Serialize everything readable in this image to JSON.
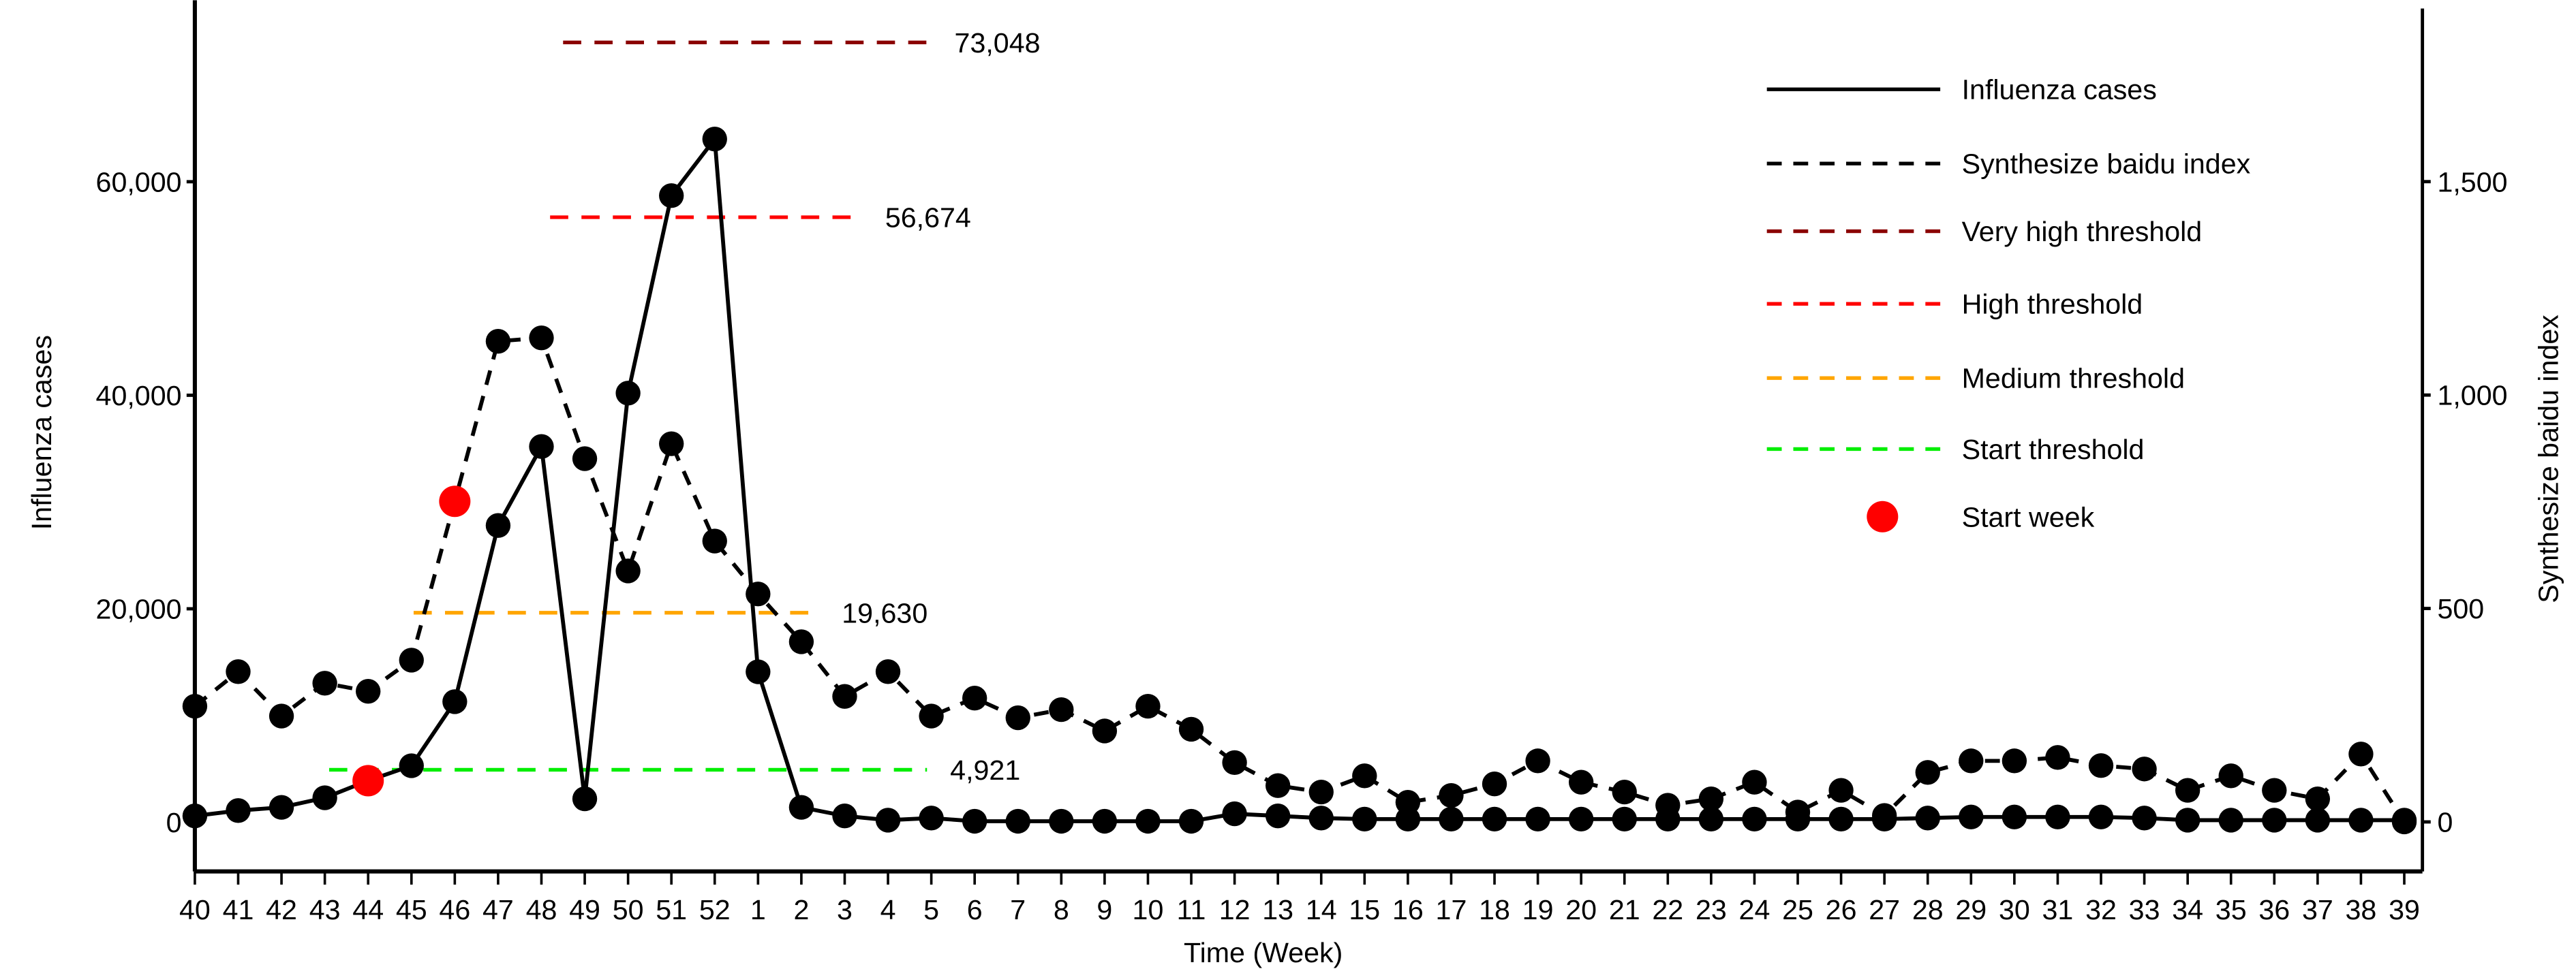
{
  "chart_data": {
    "type": "line",
    "xlabel": "Time (Week)",
    "ylabel": "Influenza cases",
    "y2label": "Synthesize baidu index",
    "categories": [
      "40",
      "41",
      "42",
      "43",
      "44",
      "45",
      "46",
      "47",
      "48",
      "49",
      "50",
      "51",
      "52",
      "1",
      "2",
      "3",
      "4",
      "5",
      "6",
      "7",
      "8",
      "9",
      "10",
      "11",
      "12",
      "13",
      "14",
      "15",
      "16",
      "17",
      "18",
      "19",
      "20",
      "21",
      "22",
      "23",
      "24",
      "25",
      "26",
      "27",
      "28",
      "29",
      "30",
      "31",
      "32",
      "33",
      "34",
      "35",
      "36",
      "37",
      "38",
      "39"
    ],
    "ylim": [
      -4600,
      77000
    ],
    "y2lim": [
      -116,
      1925
    ],
    "yticks": [
      0,
      20000,
      40000,
      60000
    ],
    "ytick_labels": [
      "0",
      "20,000",
      "40,000",
      "60,000"
    ],
    "y2ticks": [
      0,
      500,
      1000,
      1500
    ],
    "y2tick_labels": [
      "0",
      "500",
      "1,000",
      "1,500"
    ],
    "series": [
      {
        "name": "Influenza cases",
        "axis": "left",
        "style": "solid",
        "color": "#000000",
        "values": [
          600,
          1100,
          1400,
          2300,
          3900,
          5300,
          11300,
          27800,
          35200,
          2200,
          40200,
          58700,
          64000,
          14100,
          1400,
          600,
          200,
          400,
          100,
          100,
          100,
          100,
          100,
          100,
          800,
          600,
          400,
          300,
          300,
          300,
          300,
          300,
          300,
          300,
          300,
          300,
          300,
          300,
          300,
          300,
          400,
          500,
          500,
          500,
          500,
          400,
          200,
          200,
          200,
          200,
          200,
          200
        ],
        "start_week_index": 4
      },
      {
        "name": "Synthesize baidu index",
        "axis": "right",
        "style": "dashed",
        "color": "#000000",
        "values": [
          271,
          352,
          248,
          325,
          306,
          379,
          751,
          1126,
          1134,
          851,
          588,
          886,
          658,
          534,
          422,
          294,
          352,
          248,
          290,
          244,
          263,
          213,
          271,
          217,
          139,
          85,
          70,
          108,
          46,
          62,
          89,
          143,
          93,
          70,
          39,
          54,
          93,
          23,
          74,
          15,
          116,
          143,
          143,
          151,
          132,
          124,
          74,
          108,
          74,
          54,
          159,
          0
        ],
        "start_week_index": 6
      }
    ],
    "thresholds": [
      {
        "name": "Very high threshold",
        "value": 73048,
        "label": "73,048",
        "color": "#8b0000",
        "x_from": 8.5,
        "x_to": 17
      },
      {
        "name": "High threshold",
        "value": 56674,
        "label": "56,674",
        "color": "#ff0000",
        "x_from": 8.2,
        "x_to": 15.4
      },
      {
        "name": "Medium threshold",
        "value": 19630,
        "label": "19,630",
        "color": "#ffa500",
        "x_from": 5.05,
        "x_to": 14.4
      },
      {
        "name": "Start threshold",
        "value": 4921,
        "label": "4,921",
        "color": "#00ee00",
        "x_from": 3.1,
        "x_to": 16.9
      }
    ],
    "legend": {
      "placement": "top-right",
      "items": [
        {
          "label": "Influenza cases",
          "kind": "solid",
          "color": "#000000"
        },
        {
          "label": "Synthesize baidu index",
          "kind": "dashed",
          "color": "#000000"
        },
        {
          "label": "Very high threshold",
          "kind": "dashed",
          "color": "#8b0000"
        },
        {
          "label": "High threshold",
          "kind": "dashed",
          "color": "#ff0000"
        },
        {
          "label": "Medium threshold",
          "kind": "dashed",
          "color": "#ffa500"
        },
        {
          "label": "Start threshold",
          "kind": "dashed",
          "color": "#00ee00"
        },
        {
          "label": "Start week",
          "kind": "dot",
          "color": "#ff0000"
        }
      ]
    }
  }
}
